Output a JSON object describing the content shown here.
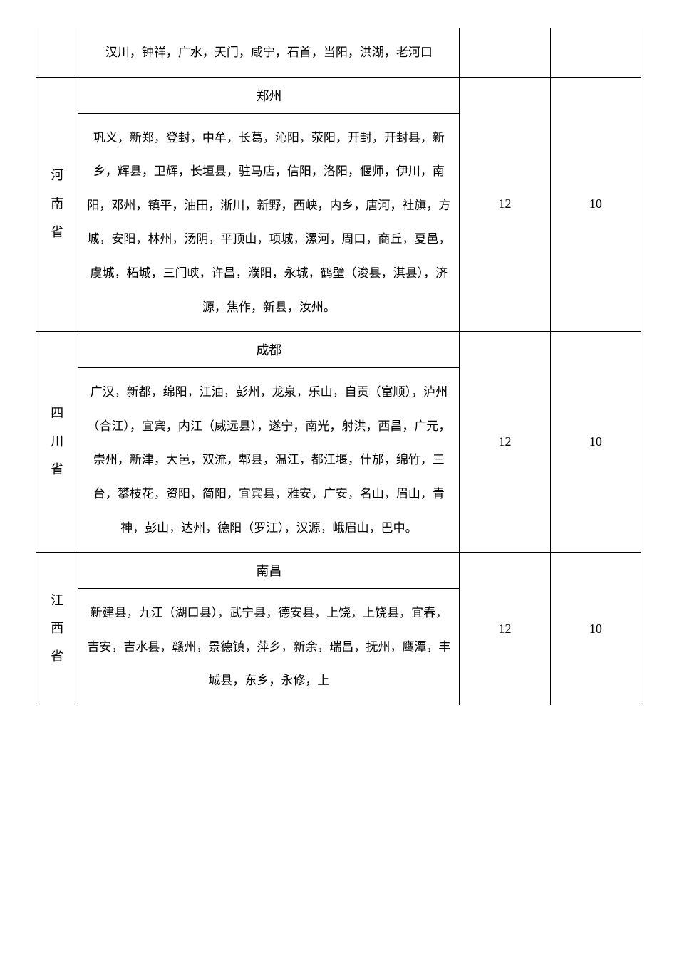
{
  "table": {
    "rows": [
      {
        "province": "",
        "header": "",
        "body": "汉川，钟祥，广水，天门，咸宁，石首，当阳，洪湖，老河口",
        "num1": "",
        "num2": "",
        "showProvince": false,
        "showHeader": false,
        "showNums": false,
        "continuesFromAbove": true
      },
      {
        "province": "河南省",
        "header": "郑州",
        "body": "巩义，新郑，登封，中牟，长葛，沁阳，荥阳，开封，开封县，新乡，辉县，卫辉，长垣县，驻马店，信阳，洛阳，偃师，伊川，南阳，邓州，镇平，油田，淅川，新野，西峡，内乡，唐河，社旗，方城，安阳，林州，汤阴，平顶山，项城，漯河，周口，商丘，夏邑，虞城，柘城，三门峡，许昌，濮阳，永城，鹤壁（浚县，淇县），济源，焦作，新县，汝州。",
        "num1": "12",
        "num2": "10",
        "showProvince": true,
        "showHeader": true,
        "showNums": true,
        "continuesFromAbove": false
      },
      {
        "province": "四川省",
        "header": "成都",
        "body": "广汉，新都，绵阳，江油，彭州，龙泉，乐山，自贡（富顺），泸州（合江），宜宾，内江（威远县），遂宁，南光，射洪，西昌，广元，崇州，新津，大邑，双流，郫县，温江，都江堰，什邡，绵竹，三台，攀枝花，资阳，简阳，宜宾县，雅安，广安，名山，眉山，青神，彭山，达州，德阳（罗江），汉源，峨眉山，巴中。",
        "num1": "12",
        "num2": "10",
        "showProvince": true,
        "showHeader": true,
        "showNums": true,
        "continuesFromAbove": false
      },
      {
        "province": "江西省",
        "header": "南昌",
        "body": "新建县，九江（湖口县），武宁县，德安县，上饶，上饶县，宜春，吉安，吉水县，赣州，景德镇，萍乡，新余，瑞昌，抚州，鹰潭，丰城县，东乡，永修，上",
        "num1": "12",
        "num2": "10",
        "showProvince": true,
        "showHeader": true,
        "showNums": true,
        "continuesFromAbove": false,
        "continuesBelow": true
      }
    ]
  },
  "styling": {
    "background_color": "#ffffff",
    "border_color": "#000000",
    "text_color": "#000000",
    "font_family": "SimSun",
    "body_fontsize": 17,
    "header_fontsize": 18,
    "line_height": 2.8
  }
}
